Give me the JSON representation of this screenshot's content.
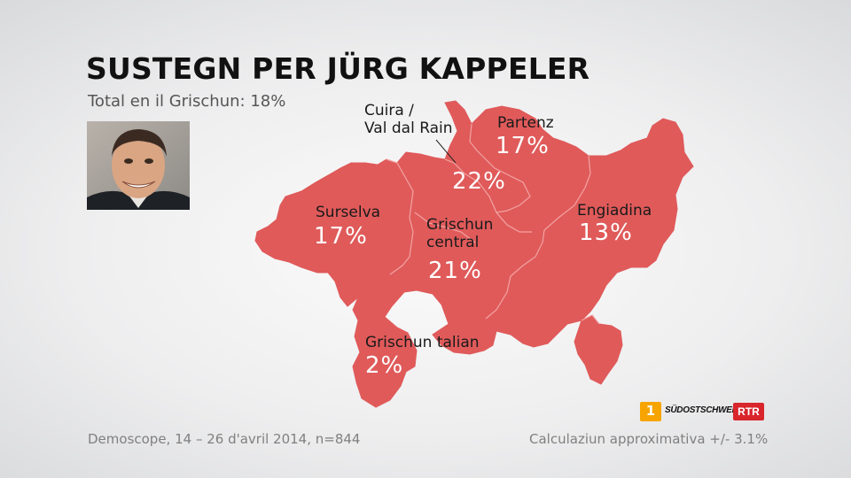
{
  "header": {
    "title": "SUSTEGN PER JÜRG KAPPELER",
    "subtitle": "Total en il Grischun: 18%"
  },
  "map": {
    "fill_color": "#e05a5a",
    "border_color": "#f3a3a3",
    "regions": [
      {
        "id": "cuira",
        "label": "Cuira /\nVal dal Rain",
        "value": "22%"
      },
      {
        "id": "partenz",
        "label": "Partenz",
        "value": "17%"
      },
      {
        "id": "surselva",
        "label": "Surselva",
        "value": "17%"
      },
      {
        "id": "grischun-central",
        "label": "Grischun\ncentral",
        "value": "21%"
      },
      {
        "id": "engiadina",
        "label": "Engiadina",
        "value": "13%"
      },
      {
        "id": "grischun-talian",
        "label": "Grischun talian",
        "value": "2%"
      }
    ]
  },
  "footer": {
    "source": "Demoscope, 14 – 26 d'avril 2014, n=844",
    "margin": "Calculaziun approximativa +/- 3.1%"
  },
  "logos": {
    "radio": "1",
    "newspaper": "SÜDOSTSCHWEIZ",
    "broadcaster": "RTR"
  }
}
